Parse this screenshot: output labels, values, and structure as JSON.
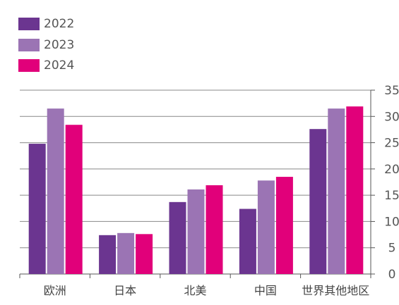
{
  "chart_data": {
    "type": "bar",
    "categories": [
      "欧洲",
      "日本",
      "北美",
      "中国",
      "世界其他地区"
    ],
    "series": [
      {
        "name": "2022",
        "color": "#6b3590",
        "values": [
          24.8,
          7.4,
          13.7,
          12.4,
          27.6
        ]
      },
      {
        "name": "2023",
        "color": "#9b74b4",
        "values": [
          31.5,
          7.8,
          16.1,
          17.8,
          31.5
        ]
      },
      {
        "name": "2024",
        "color": "#e1007a",
        "values": [
          28.4,
          7.6,
          16.9,
          18.5,
          31.9
        ]
      }
    ],
    "ylim": [
      0,
      35
    ],
    "yticks": [
      "0",
      "5",
      "10",
      "15",
      "20",
      "25",
      "30",
      "35"
    ],
    "y_axis_side": "right",
    "grid": true,
    "legend_position": "top-left",
    "title": "",
    "xlabel": "",
    "ylabel": ""
  }
}
